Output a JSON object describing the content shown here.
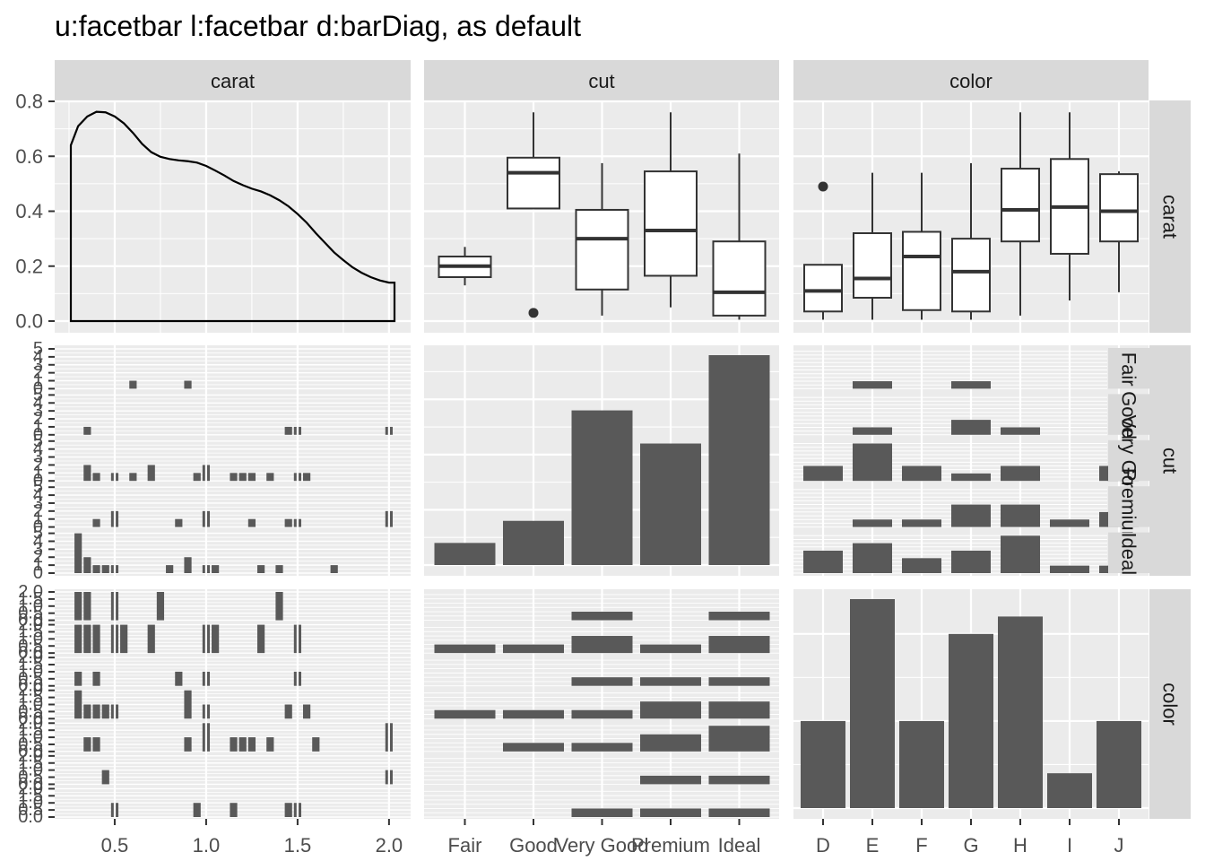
{
  "title": "u:facetbar l:facetbar d:barDiag, as default",
  "theme": {
    "panel_bg": "#EBEBEB",
    "strip_bg": "#D9D9D9",
    "grid": "#FFFFFF",
    "bar_fill": "#595959",
    "text": "#1A1A1A",
    "axis_text": "#4D4D4D"
  },
  "chart_data": [
    {
      "panel": "carat-carat",
      "type": "line",
      "subtype": "density",
      "x": [
        0.26,
        0.3,
        0.35,
        0.4,
        0.45,
        0.5,
        0.55,
        0.6,
        0.65,
        0.7,
        0.75,
        0.8,
        0.85,
        0.9,
        0.95,
        1.0,
        1.05,
        1.1,
        1.15,
        1.2,
        1.25,
        1.3,
        1.35,
        1.4,
        1.45,
        1.5,
        1.55,
        1.6,
        1.65,
        1.7,
        1.75,
        1.8,
        1.85,
        1.9,
        1.95,
        2.0,
        2.03
      ],
      "y": [
        0.64,
        0.71,
        0.745,
        0.762,
        0.76,
        0.745,
        0.72,
        0.685,
        0.645,
        0.615,
        0.598,
        0.59,
        0.585,
        0.582,
        0.577,
        0.565,
        0.548,
        0.53,
        0.51,
        0.495,
        0.482,
        0.472,
        0.458,
        0.44,
        0.418,
        0.39,
        0.358,
        0.32,
        0.285,
        0.25,
        0.222,
        0.196,
        0.176,
        0.16,
        0.148,
        0.14,
        0.14
      ],
      "ylim": [
        0,
        0.8
      ],
      "xlim": [
        0.26,
        2.03
      ]
    },
    {
      "panel": "cut-carat",
      "type": "boxplot",
      "categories": [
        "Fair",
        "Good",
        "Very Good",
        "Premium",
        "Ideal"
      ],
      "stats": [
        {
          "min": 0.13,
          "q1": 0.16,
          "median": 0.2,
          "q3": 0.235,
          "max": 0.27,
          "outliers": []
        },
        {
          "min": 0.41,
          "q1": 0.41,
          "median": 0.54,
          "q3": 0.595,
          "max": 0.76,
          "outliers": [
            0.03
          ]
        },
        {
          "min": 0.02,
          "q1": 0.115,
          "median": 0.3,
          "q3": 0.405,
          "max": 0.575,
          "outliers": []
        },
        {
          "min": 0.05,
          "q1": 0.165,
          "median": 0.33,
          "q3": 0.545,
          "max": 0.76,
          "outliers": []
        },
        {
          "min": 0.005,
          "q1": 0.02,
          "median": 0.105,
          "q3": 0.29,
          "max": 0.61,
          "outliers": []
        }
      ]
    },
    {
      "panel": "color-carat",
      "type": "boxplot",
      "categories": [
        "D",
        "E",
        "F",
        "G",
        "H",
        "I",
        "J"
      ],
      "stats": [
        {
          "min": 0.005,
          "q1": 0.035,
          "median": 0.11,
          "q3": 0.205,
          "max": 0.205,
          "outliers": [
            0.49
          ]
        },
        {
          "min": 0.005,
          "q1": 0.085,
          "median": 0.155,
          "q3": 0.32,
          "max": 0.54,
          "outliers": []
        },
        {
          "min": 0.005,
          "q1": 0.04,
          "median": 0.235,
          "q3": 0.325,
          "max": 0.54,
          "outliers": []
        },
        {
          "min": 0.005,
          "q1": 0.035,
          "median": 0.18,
          "q3": 0.3,
          "max": 0.575,
          "outliers": []
        },
        {
          "min": 0.02,
          "q1": 0.29,
          "median": 0.405,
          "q3": 0.555,
          "max": 0.76,
          "outliers": []
        },
        {
          "min": 0.075,
          "q1": 0.245,
          "median": 0.415,
          "q3": 0.59,
          "max": 0.76,
          "outliers": []
        },
        {
          "min": 0.105,
          "q1": 0.29,
          "median": 0.4,
          "q3": 0.535,
          "max": 0.545,
          "outliers": []
        }
      ]
    },
    {
      "panel": "carat-cut",
      "type": "bar",
      "subtype": "faceted histogram",
      "bin_centers": [
        0.3,
        0.35,
        0.4,
        0.45,
        0.5,
        0.55,
        0.6,
        0.65,
        0.7,
        0.75,
        0.8,
        0.85,
        0.9,
        0.95,
        1.0,
        1.05,
        1.1,
        1.15,
        1.2,
        1.25,
        1.3,
        1.35,
        1.4,
        1.45,
        1.5,
        1.55,
        1.6,
        1.65,
        1.7,
        1.75,
        1.8,
        1.85,
        1.9,
        1.95,
        2.0
      ],
      "series": [
        {
          "name": "Fair",
          "values": [
            0,
            0,
            0,
            0,
            0,
            0,
            1,
            0,
            0,
            0,
            0,
            0,
            1,
            0,
            0,
            0,
            0,
            0,
            0,
            0,
            0,
            0,
            0,
            0,
            0,
            0,
            0,
            0,
            0,
            0,
            0,
            0,
            0,
            0,
            0
          ]
        },
        {
          "name": "Good",
          "values": [
            0,
            1,
            0,
            0,
            0,
            0,
            0,
            0,
            0,
            0,
            0,
            0,
            0,
            0,
            0,
            0,
            0,
            0,
            0,
            0,
            0,
            0,
            0,
            1,
            1,
            0,
            0,
            0,
            0,
            0,
            0,
            0,
            0,
            0,
            1
          ]
        },
        {
          "name": "Very Good",
          "values": [
            0,
            2,
            1,
            0,
            1,
            0,
            1,
            0,
            2,
            0,
            0,
            0,
            0,
            1,
            2,
            0,
            0,
            1,
            1,
            1,
            0,
            1,
            0,
            0,
            1,
            1,
            0,
            0,
            0,
            0,
            0,
            0,
            0,
            0,
            0
          ]
        },
        {
          "name": "Premium",
          "values": [
            0,
            0,
            1,
            0,
            2,
            0,
            0,
            0,
            0,
            0,
            0,
            1,
            0,
            0,
            2,
            0,
            0,
            0,
            0,
            1,
            0,
            0,
            0,
            1,
            1,
            0,
            0,
            0,
            0,
            0,
            0,
            0,
            0,
            0,
            2
          ]
        },
        {
          "name": "Ideal",
          "values": [
            5,
            2,
            1,
            1,
            1,
            0,
            0,
            0,
            0,
            0,
            1,
            0,
            2,
            0,
            1,
            1,
            0,
            0,
            0,
            0,
            1,
            0,
            1,
            0,
            0,
            0,
            0,
            0,
            1,
            0,
            0,
            0,
            0,
            0,
            0
          ]
        }
      ],
      "ytick_labels": [
        "0",
        "1",
        "2",
        "3",
        "4",
        "5"
      ]
    },
    {
      "panel": "cut-cut",
      "type": "bar",
      "categories": [
        "Fair",
        "Good",
        "Very Good",
        "Premium",
        "Ideal"
      ],
      "values": [
        2,
        4,
        14,
        11,
        19
      ]
    },
    {
      "panel": "color-cut",
      "type": "bar",
      "subtype": "faceted",
      "categories": [
        "D",
        "E",
        "F",
        "G",
        "H",
        "I",
        "J"
      ],
      "series": [
        {
          "name": "Fair",
          "values": [
            0,
            1,
            0,
            1,
            0,
            0,
            0
          ]
        },
        {
          "name": "Good",
          "values": [
            0,
            1,
            0,
            2,
            1,
            0,
            0
          ]
        },
        {
          "name": "Very Good",
          "values": [
            2,
            5,
            2,
            1,
            2,
            0,
            2
          ]
        },
        {
          "name": "Premium",
          "values": [
            0,
            1,
            1,
            3,
            3,
            1,
            2
          ]
        },
        {
          "name": "Ideal",
          "values": [
            3,
            4,
            2,
            3,
            5,
            1,
            1
          ]
        }
      ]
    },
    {
      "panel": "carat-color",
      "type": "bar",
      "subtype": "faceted histogram",
      "bin_centers": [
        0.3,
        0.35,
        0.4,
        0.45,
        0.5,
        0.55,
        0.6,
        0.65,
        0.7,
        0.75,
        0.8,
        0.85,
        0.9,
        0.95,
        1.0,
        1.05,
        1.1,
        1.15,
        1.2,
        1.25,
        1.3,
        1.35,
        1.4,
        1.45,
        1.5,
        1.55,
        1.6,
        1.65,
        1.7,
        1.75,
        1.8,
        1.85,
        1.9,
        1.95,
        2.0
      ],
      "series": [
        {
          "name": "D",
          "values": [
            2,
            2,
            0,
            0,
            2,
            0,
            0,
            0,
            0,
            2,
            0,
            0,
            0,
            0,
            0,
            0,
            0,
            0,
            0,
            0,
            0,
            0,
            2,
            0,
            0,
            0,
            0,
            0,
            0,
            0,
            0,
            0,
            0,
            0,
            0
          ]
        },
        {
          "name": "E",
          "values": [
            2,
            2,
            2,
            0,
            2,
            2,
            0,
            0,
            2,
            0,
            0,
            0,
            0,
            0,
            2,
            2,
            0,
            0,
            0,
            0,
            2,
            0,
            0,
            0,
            2,
            0,
            0,
            0,
            0,
            0,
            0,
            0,
            0,
            0,
            0
          ]
        },
        {
          "name": "F",
          "values": [
            1,
            0,
            1,
            0,
            0,
            0,
            0,
            0,
            0,
            0,
            0,
            1,
            0,
            0,
            1,
            0,
            0,
            0,
            0,
            0,
            0,
            0,
            0,
            0,
            1,
            0,
            0,
            0,
            0,
            0,
            0,
            0,
            0,
            0,
            0
          ]
        },
        {
          "name": "G",
          "values": [
            2,
            1,
            1,
            1,
            1,
            0,
            0,
            0,
            0,
            0,
            0,
            0,
            2,
            0,
            1,
            0,
            0,
            0,
            0,
            0,
            0,
            0,
            0,
            1,
            0,
            1,
            0,
            0,
            0,
            0,
            0,
            0,
            0,
            0,
            0
          ]
        },
        {
          "name": "H",
          "values": [
            0,
            1,
            1,
            0,
            0,
            0,
            0,
            0,
            0,
            0,
            0,
            0,
            1,
            0,
            2,
            0,
            0,
            1,
            1,
            1,
            0,
            1,
            0,
            0,
            0,
            0,
            1,
            0,
            0,
            0,
            0,
            0,
            0,
            0,
            2
          ]
        },
        {
          "name": "I",
          "values": [
            0,
            0,
            0,
            1,
            0,
            0,
            0,
            0,
            0,
            0,
            0,
            0,
            0,
            0,
            0,
            0,
            0,
            0,
            0,
            0,
            0,
            0,
            0,
            0,
            0,
            0,
            0,
            0,
            0,
            0,
            0,
            0,
            0,
            0,
            1
          ]
        },
        {
          "name": "J",
          "values": [
            0,
            0,
            0,
            0,
            1,
            0,
            0,
            0,
            0,
            0,
            0,
            0,
            0,
            1,
            0,
            0,
            0,
            1,
            0,
            0,
            0,
            0,
            0,
            1,
            1,
            0,
            0,
            0,
            0,
            0,
            0,
            0,
            0,
            0,
            0
          ]
        }
      ],
      "ytick_labels": [
        "0.0",
        "0.5",
        "1.0",
        "1.5",
        "2.0"
      ]
    },
    {
      "panel": "cut-color",
      "type": "bar",
      "subtype": "faceted",
      "categories": [
        "Fair",
        "Good",
        "Very Good",
        "Premium",
        "Ideal"
      ],
      "series": [
        {
          "name": "D",
          "values": [
            0,
            0,
            1,
            0,
            1
          ]
        },
        {
          "name": "E",
          "values": [
            1,
            1,
            2,
            1,
            2
          ]
        },
        {
          "name": "F",
          "values": [
            0,
            0,
            1,
            1,
            1
          ]
        },
        {
          "name": "G",
          "values": [
            1,
            1,
            1,
            2,
            2
          ]
        },
        {
          "name": "H",
          "values": [
            0,
            1,
            1,
            2,
            3
          ]
        },
        {
          "name": "I",
          "values": [
            0,
            0,
            0,
            1,
            1
          ]
        },
        {
          "name": "J",
          "values": [
            0,
            0,
            1,
            1,
            1
          ]
        }
      ]
    },
    {
      "panel": "color-color",
      "type": "bar",
      "categories": [
        "D",
        "E",
        "F",
        "G",
        "H",
        "I",
        "J"
      ],
      "values": [
        5,
        12,
        5,
        10,
        11,
        2,
        5
      ]
    }
  ],
  "axes": {
    "strip_labels": [
      "carat",
      "cut",
      "color"
    ],
    "left_ticks_row1": [
      "0.0",
      "0.2",
      "0.4",
      "0.6",
      "0.8"
    ],
    "bottom_ticks_carat": [
      "0.5",
      "1.0",
      "1.5",
      "2.0"
    ],
    "bottom_ticks_cut": [
      "Fair",
      "Good",
      "Very Good",
      "Premium",
      "Ideal"
    ],
    "bottom_ticks_color": [
      "D",
      "E",
      "F",
      "G",
      "H",
      "I",
      "J"
    ],
    "inner_strip_labels": [
      "Fair",
      "Good",
      "Very Good",
      "Premium",
      "Ideal"
    ]
  }
}
